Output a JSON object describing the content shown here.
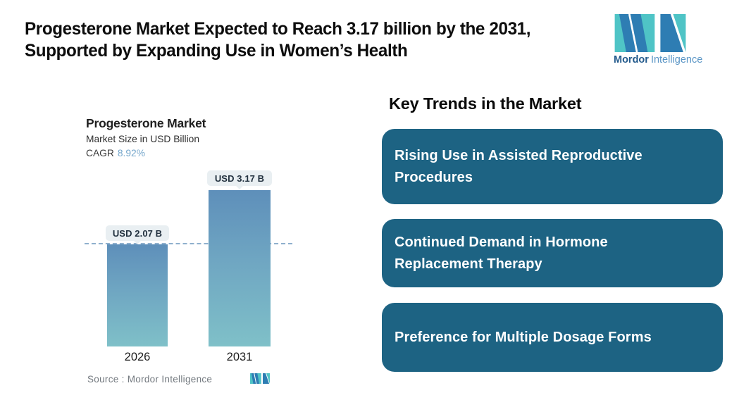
{
  "header": {
    "title_line1": "Progesterone Market Expected to Reach 3.17 billion by the 2031,",
    "title_line2": "Supported by Expanding Use in Women’s Health",
    "brand": {
      "bold": "Mordor",
      "light": "Intelligence"
    }
  },
  "chart_data": {
    "type": "bar",
    "title": "Progesterone Market",
    "subtitle": "Market Size in USD Billion",
    "cagr_label": "CAGR",
    "cagr_value": "8.92%",
    "categories": [
      "2026",
      "2031"
    ],
    "values": [
      2.07,
      3.17
    ],
    "value_labels": [
      "USD 2.07 B",
      "USD 3.17 B"
    ],
    "xlabel": "",
    "ylabel": "Market Size in USD Billion",
    "ylim": [
      0,
      3.6
    ],
    "grid": false,
    "baseline_value": 2.07,
    "legend": "none",
    "source": "Source :  Mordor Intelligence"
  },
  "trends": {
    "heading": "Key Trends in the Market",
    "cards": [
      {
        "label": "Rising Use in Assisted Reproductive Procedures",
        "lines": [
          "Rising Use in Assisted Reproductive",
          "Procedures"
        ]
      },
      {
        "label": "Continued Demand in Hormone Replacement Therapy",
        "lines": [
          "Continued Demand in Hormone",
          "Replacement Therapy"
        ]
      },
      {
        "label": "Preference for Multiple Dosage Forms",
        "lines": [
          "Preference for Multiple Dosage Forms"
        ]
      }
    ]
  },
  "colors": {
    "card_background": "#1d6383",
    "bar_gradient_top": "#5e8fba",
    "bar_gradient_bottom": "#7fc0c8",
    "dashed_line": "#8fb0cd",
    "cagr_value": "#74a6cb",
    "logo_teal": "#4fc4c6",
    "logo_blue": "#2e7db3",
    "label_pill_background": "#e9eff2"
  }
}
